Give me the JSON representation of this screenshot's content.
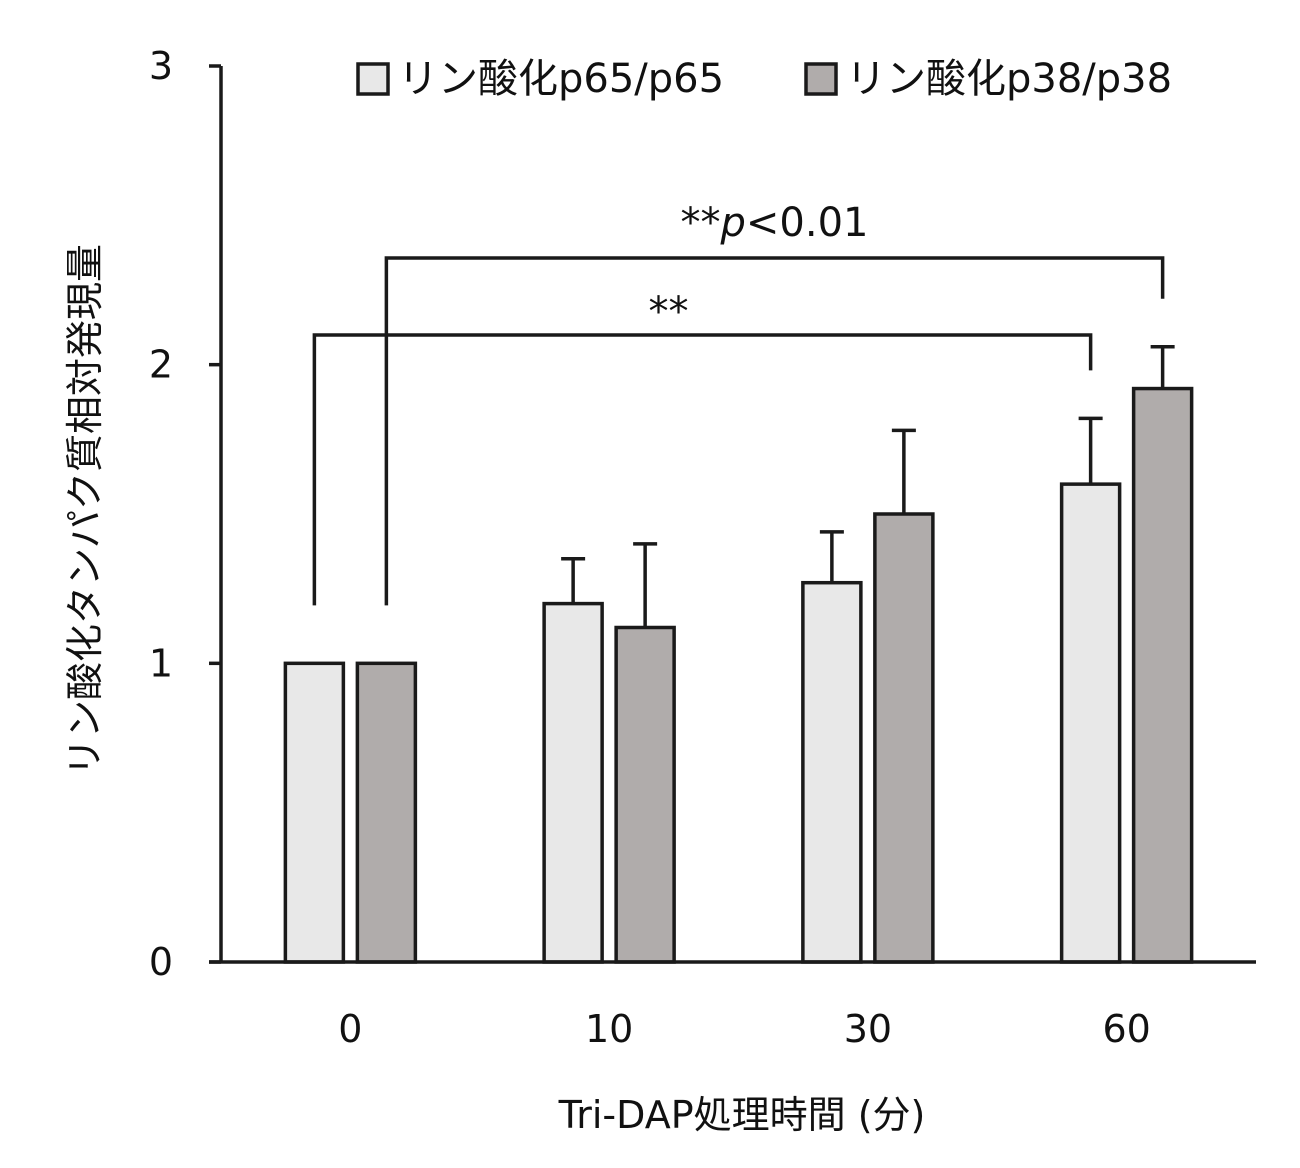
{
  "chart_data": {
    "type": "bar",
    "title": "",
    "xlabel": "Tri-DAP処理時間 (分)",
    "ylabel": "リン酸化タンパク質相対発現量",
    "categories": [
      "0",
      "10",
      "30",
      "60"
    ],
    "ylim": [
      0,
      3
    ],
    "yticks": [
      "0",
      "1",
      "2",
      "3"
    ],
    "grid": false,
    "legend_position": "top",
    "series": [
      {
        "name": "リン酸化p65/p65",
        "color": "#e8e8e8",
        "values": [
          1.0,
          1.2,
          1.27,
          1.6
        ],
        "errors": [
          0,
          0.15,
          0.17,
          0.22
        ]
      },
      {
        "name": "リン酸化p38/p38",
        "color": "#b0acab",
        "values": [
          1.0,
          1.12,
          1.5,
          1.92
        ],
        "errors": [
          0,
          0.28,
          0.28,
          0.14
        ]
      }
    ],
    "significance": [
      {
        "label": "**",
        "from": {
          "category": 0,
          "series": 0
        },
        "to": {
          "category": 3,
          "series": 0
        }
      },
      {
        "label": "**",
        "label_italic": "p",
        "label_suffix": "<0.01",
        "from": {
          "category": 0,
          "series": 1
        },
        "to": {
          "category": 3,
          "series": 1
        }
      }
    ]
  }
}
